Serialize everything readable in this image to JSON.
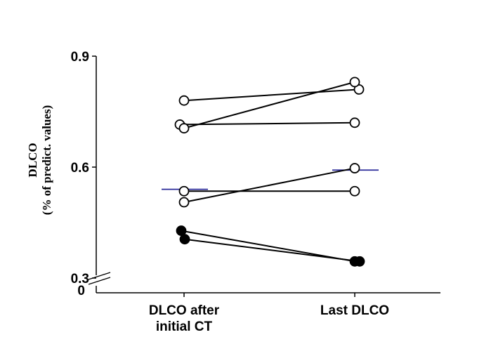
{
  "chart_data": {
    "type": "scatter",
    "xlabel_lines": [
      "DLCO",
      "(% of predict. values)"
    ],
    "ylim": [
      0.3,
      0.9
    ],
    "y_ticks": [
      "0.9",
      "0.6",
      "0.3"
    ],
    "y_break_label": "0",
    "categories": [
      {
        "lines": [
          "DLCO after",
          "initial CT"
        ]
      },
      {
        "lines": [
          "Last DLCO"
        ]
      }
    ],
    "pairs": [
      {
        "marker": "open",
        "x": [
          0.0,
          0.06
        ],
        "y": [
          0.78,
          0.81
        ]
      },
      {
        "marker": "open",
        "x": [
          -0.06,
          0.0
        ],
        "y": [
          0.715,
          0.72
        ]
      },
      {
        "marker": "open",
        "x": [
          0.0,
          0.0
        ],
        "y": [
          0.705,
          0.83
        ]
      },
      {
        "marker": "open",
        "x": [
          0.0,
          0.0
        ],
        "y": [
          0.535,
          0.535
        ]
      },
      {
        "marker": "open",
        "x": [
          0.0,
          0.0
        ],
        "y": [
          0.505,
          0.597
        ]
      },
      {
        "marker": "filled",
        "x": [
          -0.04,
          0.0
        ],
        "y": [
          0.428,
          0.345
        ]
      },
      {
        "marker": "filled",
        "x": [
          0.01,
          0.07
        ],
        "y": [
          0.405,
          0.345
        ]
      }
    ],
    "means": [
      0.54,
      0.592
    ],
    "colors": {
      "points": "#000000",
      "mean": "#2b2b9a"
    }
  }
}
